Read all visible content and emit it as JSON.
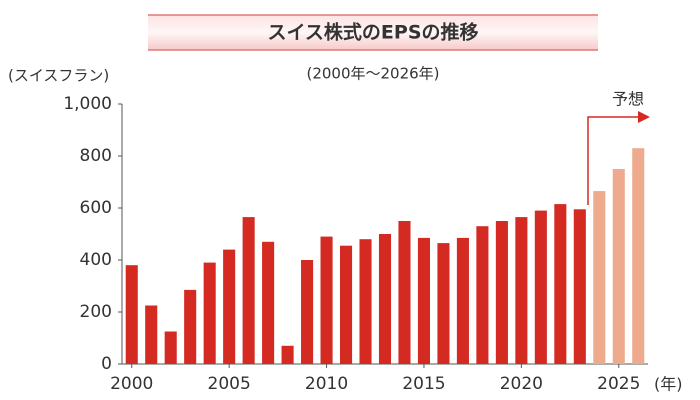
{
  "chart_data": {
    "type": "bar",
    "title": "スイス株式のEPSの推移",
    "subtitle": "(2000年～2026年)",
    "y_label": "(スイスフラン)",
    "x_label": "(年)",
    "annotation": "予想",
    "x": [
      2000,
      2001,
      2002,
      2003,
      2004,
      2005,
      2006,
      2007,
      2008,
      2009,
      2010,
      2011,
      2012,
      2013,
      2014,
      2015,
      2016,
      2017,
      2018,
      2019,
      2020,
      2021,
      2022,
      2023,
      2024,
      2025,
      2026
    ],
    "series": [
      {
        "color": "#d42a22",
        "values": [
          380,
          225,
          125,
          285,
          390,
          440,
          565,
          470,
          70,
          400,
          490,
          455,
          480,
          500,
          550,
          485,
          465,
          485,
          530,
          550,
          565,
          590,
          615,
          595,
          null,
          null,
          null
        ]
      },
      {
        "color": "#eeaa8c",
        "values": [
          null,
          null,
          null,
          null,
          null,
          null,
          null,
          null,
          null,
          null,
          null,
          null,
          null,
          null,
          null,
          null,
          null,
          null,
          null,
          null,
          null,
          null,
          null,
          null,
          665,
          750,
          830
        ]
      }
    ],
    "xlim": [
      1999.5,
      2026.5
    ],
    "xticks": [
      2000,
      2005,
      2010,
      2015,
      2020,
      2025
    ],
    "ylim": [
      0,
      1000
    ],
    "yticks": [
      0,
      200,
      400,
      600,
      800,
      {
        "value": 1000,
        "label": "1,000"
      }
    ],
    "grid": false
  }
}
